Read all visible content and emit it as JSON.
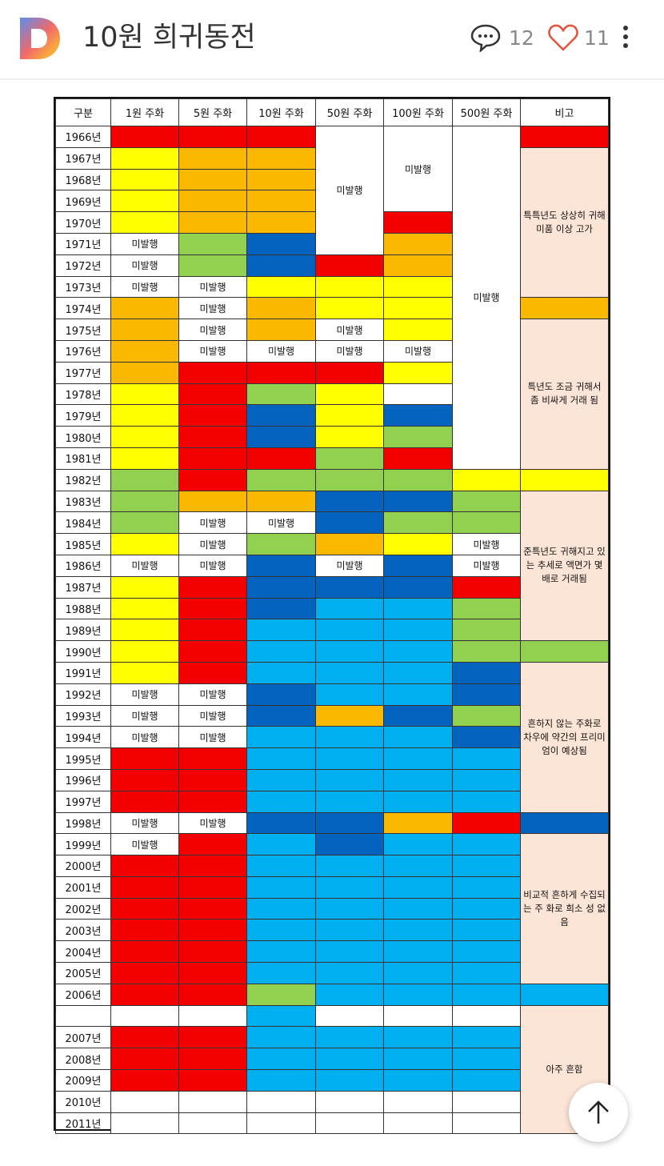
{
  "header": {
    "title": "10원 희귀동전",
    "comment_count": "12",
    "like_count": "11"
  },
  "colors": {
    "R": "#f30000",
    "O": "#fbb800",
    "Y": "#ffff00",
    "G": "#92d050",
    "D": "#0563c0",
    "B": "#00b0f0",
    "W": "#ffffff",
    "P": "#fce4d6",
    "N": "#ffffff",
    "M": "#ffffff"
  },
  "table": {
    "headers": [
      "구분",
      "1원 주화",
      "5원 주화",
      "10원 주화",
      "50원 주화",
      "100원 주화",
      "500원 주화",
      "비고"
    ],
    "not_issued": "미발행",
    "merges": [
      {
        "col": 3,
        "row": 0,
        "span": 6
      },
      {
        "col": 4,
        "row": 0,
        "span": 4
      },
      {
        "col": 5,
        "row": 0,
        "span": 16
      }
    ],
    "rows": [
      {
        "year": "1966년",
        "cells": "RRRMMM"
      },
      {
        "year": "1967년",
        "cells": "YOO---"
      },
      {
        "year": "1968년",
        "cells": "YOO---"
      },
      {
        "year": "1969년",
        "cells": "YOO---"
      },
      {
        "year": "1970년",
        "cells": "YOO-R-"
      },
      {
        "year": "1971년",
        "cells": "NGD-O-"
      },
      {
        "year": "1972년",
        "cells": "NGDRO-"
      },
      {
        "year": "1973년",
        "cells": "NNYYY-"
      },
      {
        "year": "1974년",
        "cells": "ONOYY-"
      },
      {
        "year": "1975년",
        "cells": "ONONY-"
      },
      {
        "year": "1976년",
        "cells": "ONNNN-"
      },
      {
        "year": "1977년",
        "cells": "ORRRY-"
      },
      {
        "year": "1978년",
        "cells": "YRGYW-"
      },
      {
        "year": "1979년",
        "cells": "YRDYD-"
      },
      {
        "year": "1980년",
        "cells": "YRDYG-"
      },
      {
        "year": "1981년",
        "cells": "YRRGR-"
      },
      {
        "year": "1982년",
        "cells": "GRGGGY"
      },
      {
        "year": "1983년",
        "cells": "GOODDG"
      },
      {
        "year": "1984년",
        "cells": "GNNDGG"
      },
      {
        "year": "1985년",
        "cells": "YNGOYN"
      },
      {
        "year": "1986년",
        "cells": "NNDNDN"
      },
      {
        "year": "1987년",
        "cells": "YRDDDR"
      },
      {
        "year": "1988년",
        "cells": "YRDBBG"
      },
      {
        "year": "1989년",
        "cells": "YRBBBG"
      },
      {
        "year": "1990년",
        "cells": "YRBBBG"
      },
      {
        "year": "1991년",
        "cells": "YRBBBD"
      },
      {
        "year": "1992년",
        "cells": "NNDBBD"
      },
      {
        "year": "1993년",
        "cells": "NNDODG"
      },
      {
        "year": "1994년",
        "cells": "NNBBBD"
      },
      {
        "year": "1995년",
        "cells": "RRBBBB"
      },
      {
        "year": "1996년",
        "cells": "RRBBBB"
      },
      {
        "year": "1997년",
        "cells": "RRBBBB"
      },
      {
        "year": "1998년",
        "cells": "NNDDOR"
      },
      {
        "year": "1999년",
        "cells": "NRBDBB"
      },
      {
        "year": "2000년",
        "cells": "RRBBBB"
      },
      {
        "year": "2001년",
        "cells": "RRBBBB"
      },
      {
        "year": "2002년",
        "cells": "RRBBBB"
      },
      {
        "year": "2003년",
        "cells": "RRBBBB"
      },
      {
        "year": "2004년",
        "cells": "RRBBBB"
      },
      {
        "year": "2005년",
        "cells": "RRBBBB"
      },
      {
        "year": "2006년",
        "cells": "RRGBBB"
      },
      {
        "year": "",
        "cells": "WWBWWW"
      },
      {
        "year": "2007년",
        "cells": "RRBBBB"
      },
      {
        "year": "2008년",
        "cells": "RRBBBB"
      },
      {
        "year": "2009년",
        "cells": "RRBBBB"
      },
      {
        "year": "2010년",
        "cells": "WWWWWW"
      },
      {
        "year": "2011년",
        "cells": "WWWWWW"
      }
    ],
    "remarks": [
      {
        "span": 1,
        "color": "R",
        "text": ""
      },
      {
        "span": 7,
        "color": "P",
        "text": "특특년도 상상히 귀해 미품 이상 고가"
      },
      {
        "span": 1,
        "color": "O",
        "text": ""
      },
      {
        "span": 7,
        "color": "P",
        "text": "특년도 조금 귀해서 좀 비싸게 거래 됨"
      },
      {
        "span": 1,
        "color": "Y",
        "text": ""
      },
      {
        "span": 7,
        "color": "P",
        "text": "준특년도 귀해지고 있는 추세로 액면가 몇배로 거래됨"
      },
      {
        "span": 1,
        "color": "G",
        "text": ""
      },
      {
        "span": 7,
        "color": "P",
        "text": "흔하지 않는 주화로 차우에 약간의 프리미엄이 예상됨"
      },
      {
        "span": 1,
        "color": "D",
        "text": ""
      },
      {
        "span": 7,
        "color": "P",
        "text": "비교적 흔하게 수집되는 주 화로 희소 성 없음"
      },
      {
        "span": 1,
        "color": "B",
        "text": ""
      },
      {
        "span": 6,
        "color": "P",
        "text": "아주 흔함"
      }
    ]
  }
}
